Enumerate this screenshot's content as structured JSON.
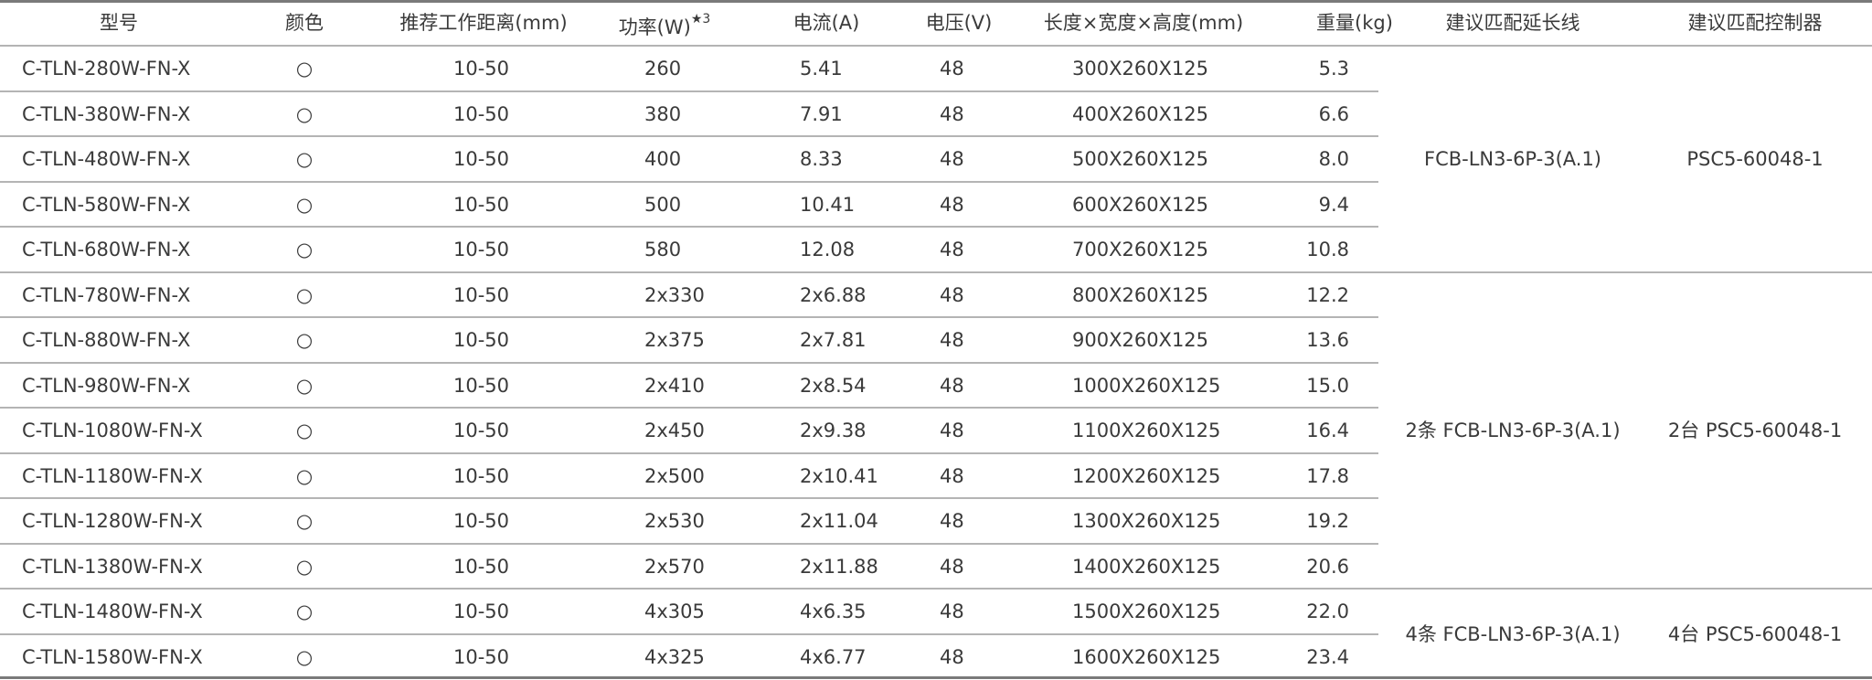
{
  "headers": {
    "model": "型号",
    "color": "颜色",
    "distance": "推荐工作距离(mm)",
    "power": "功率(W)",
    "power_note": "★3",
    "current": "电流(A)",
    "voltage": "电压(V)",
    "dimensions": "长度×宽度×高度(mm)",
    "weight": "重量(kg)",
    "cable": "建议匹配延长线",
    "controller": "建议匹配控制器"
  },
  "rows": [
    {
      "model": "C-TLN-280W-FN-X",
      "color": "○",
      "distance": "10-50",
      "power": "260",
      "current": "5.41",
      "voltage": "48",
      "dimensions": "300X260X125",
      "weight": "5.3"
    },
    {
      "model": "C-TLN-380W-FN-X",
      "color": "○",
      "distance": "10-50",
      "power": "380",
      "current": "7.91",
      "voltage": "48",
      "dimensions": "400X260X125",
      "weight": "6.6"
    },
    {
      "model": "C-TLN-480W-FN-X",
      "color": "○",
      "distance": "10-50",
      "power": "400",
      "current": "8.33",
      "voltage": "48",
      "dimensions": "500X260X125",
      "weight": "8.0"
    },
    {
      "model": "C-TLN-580W-FN-X",
      "color": "○",
      "distance": "10-50",
      "power": "500",
      "current": "10.41",
      "voltage": "48",
      "dimensions": "600X260X125",
      "weight": "9.4"
    },
    {
      "model": "C-TLN-680W-FN-X",
      "color": "○",
      "distance": "10-50",
      "power": "580",
      "current": "12.08",
      "voltage": "48",
      "dimensions": "700X260X125",
      "weight": "10.8"
    },
    {
      "model": "C-TLN-780W-FN-X",
      "color": "○",
      "distance": "10-50",
      "power": "2x330",
      "current": "2x6.88",
      "voltage": "48",
      "dimensions": "800X260X125",
      "weight": "12.2"
    },
    {
      "model": "C-TLN-880W-FN-X",
      "color": "○",
      "distance": "10-50",
      "power": "2x375",
      "current": "2x7.81",
      "voltage": "48",
      "dimensions": "900X260X125",
      "weight": "13.6"
    },
    {
      "model": "C-TLN-980W-FN-X",
      "color": "○",
      "distance": "10-50",
      "power": "2x410",
      "current": "2x8.54",
      "voltage": "48",
      "dimensions": "1000X260X125",
      "weight": "15.0"
    },
    {
      "model": "C-TLN-1080W-FN-X",
      "color": "○",
      "distance": "10-50",
      "power": "2x450",
      "current": "2x9.38",
      "voltage": "48",
      "dimensions": "1100X260X125",
      "weight": "16.4"
    },
    {
      "model": "C-TLN-1180W-FN-X",
      "color": "○",
      "distance": "10-50",
      "power": "2x500",
      "current": "2x10.41",
      "voltage": "48",
      "dimensions": "1200X260X125",
      "weight": "17.8"
    },
    {
      "model": "C-TLN-1280W-FN-X",
      "color": "○",
      "distance": "10-50",
      "power": "2x530",
      "current": "2x11.04",
      "voltage": "48",
      "dimensions": "1300X260X125",
      "weight": "19.2"
    },
    {
      "model": "C-TLN-1380W-FN-X",
      "color": "○",
      "distance": "10-50",
      "power": "2x570",
      "current": "2x11.88",
      "voltage": "48",
      "dimensions": "1400X260X125",
      "weight": "20.6"
    },
    {
      "model": "C-TLN-1480W-FN-X",
      "color": "○",
      "distance": "10-50",
      "power": "4x305",
      "current": "4x6.35",
      "voltage": "48",
      "dimensions": "1500X260X125",
      "weight": "22.0"
    },
    {
      "model": "C-TLN-1580W-FN-X",
      "color": "○",
      "distance": "10-50",
      "power": "4x325",
      "current": "4x6.77",
      "voltage": "48",
      "dimensions": "1600X260X125",
      "weight": "23.4"
    }
  ],
  "groups": [
    {
      "rows": 5,
      "cable": "FCB-LN3-6P-3(A.1)",
      "controller": "PSC5-60048-1"
    },
    {
      "rows": 7,
      "cable": "2条 FCB-LN3-6P-3(A.1)",
      "controller": "2台 PSC5-60048-1"
    },
    {
      "rows": 2,
      "cable": "4条 FCB-LN3-6P-3(A.1)",
      "controller": "4台 PSC5-60048-1"
    }
  ]
}
